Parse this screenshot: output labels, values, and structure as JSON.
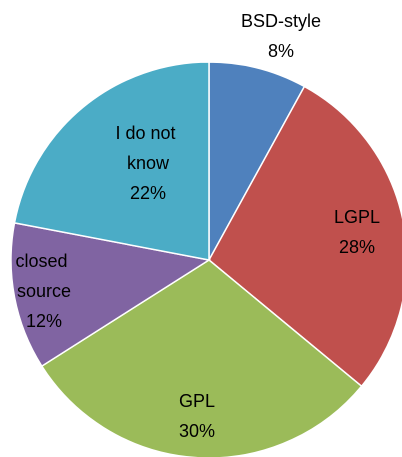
{
  "chart_data": {
    "type": "pie",
    "categories": [
      "BSD-style",
      "LGPL",
      "GPL",
      "closed source",
      "I do not know"
    ],
    "values": [
      8,
      28,
      30,
      12,
      22
    ],
    "value_labels": [
      "8%",
      "28%",
      "30%",
      "12%",
      "22%"
    ],
    "colors": [
      "#4f81bd",
      "#c0504d",
      "#9bbb59",
      "#8064a2",
      "#4bacc6"
    ]
  }
}
